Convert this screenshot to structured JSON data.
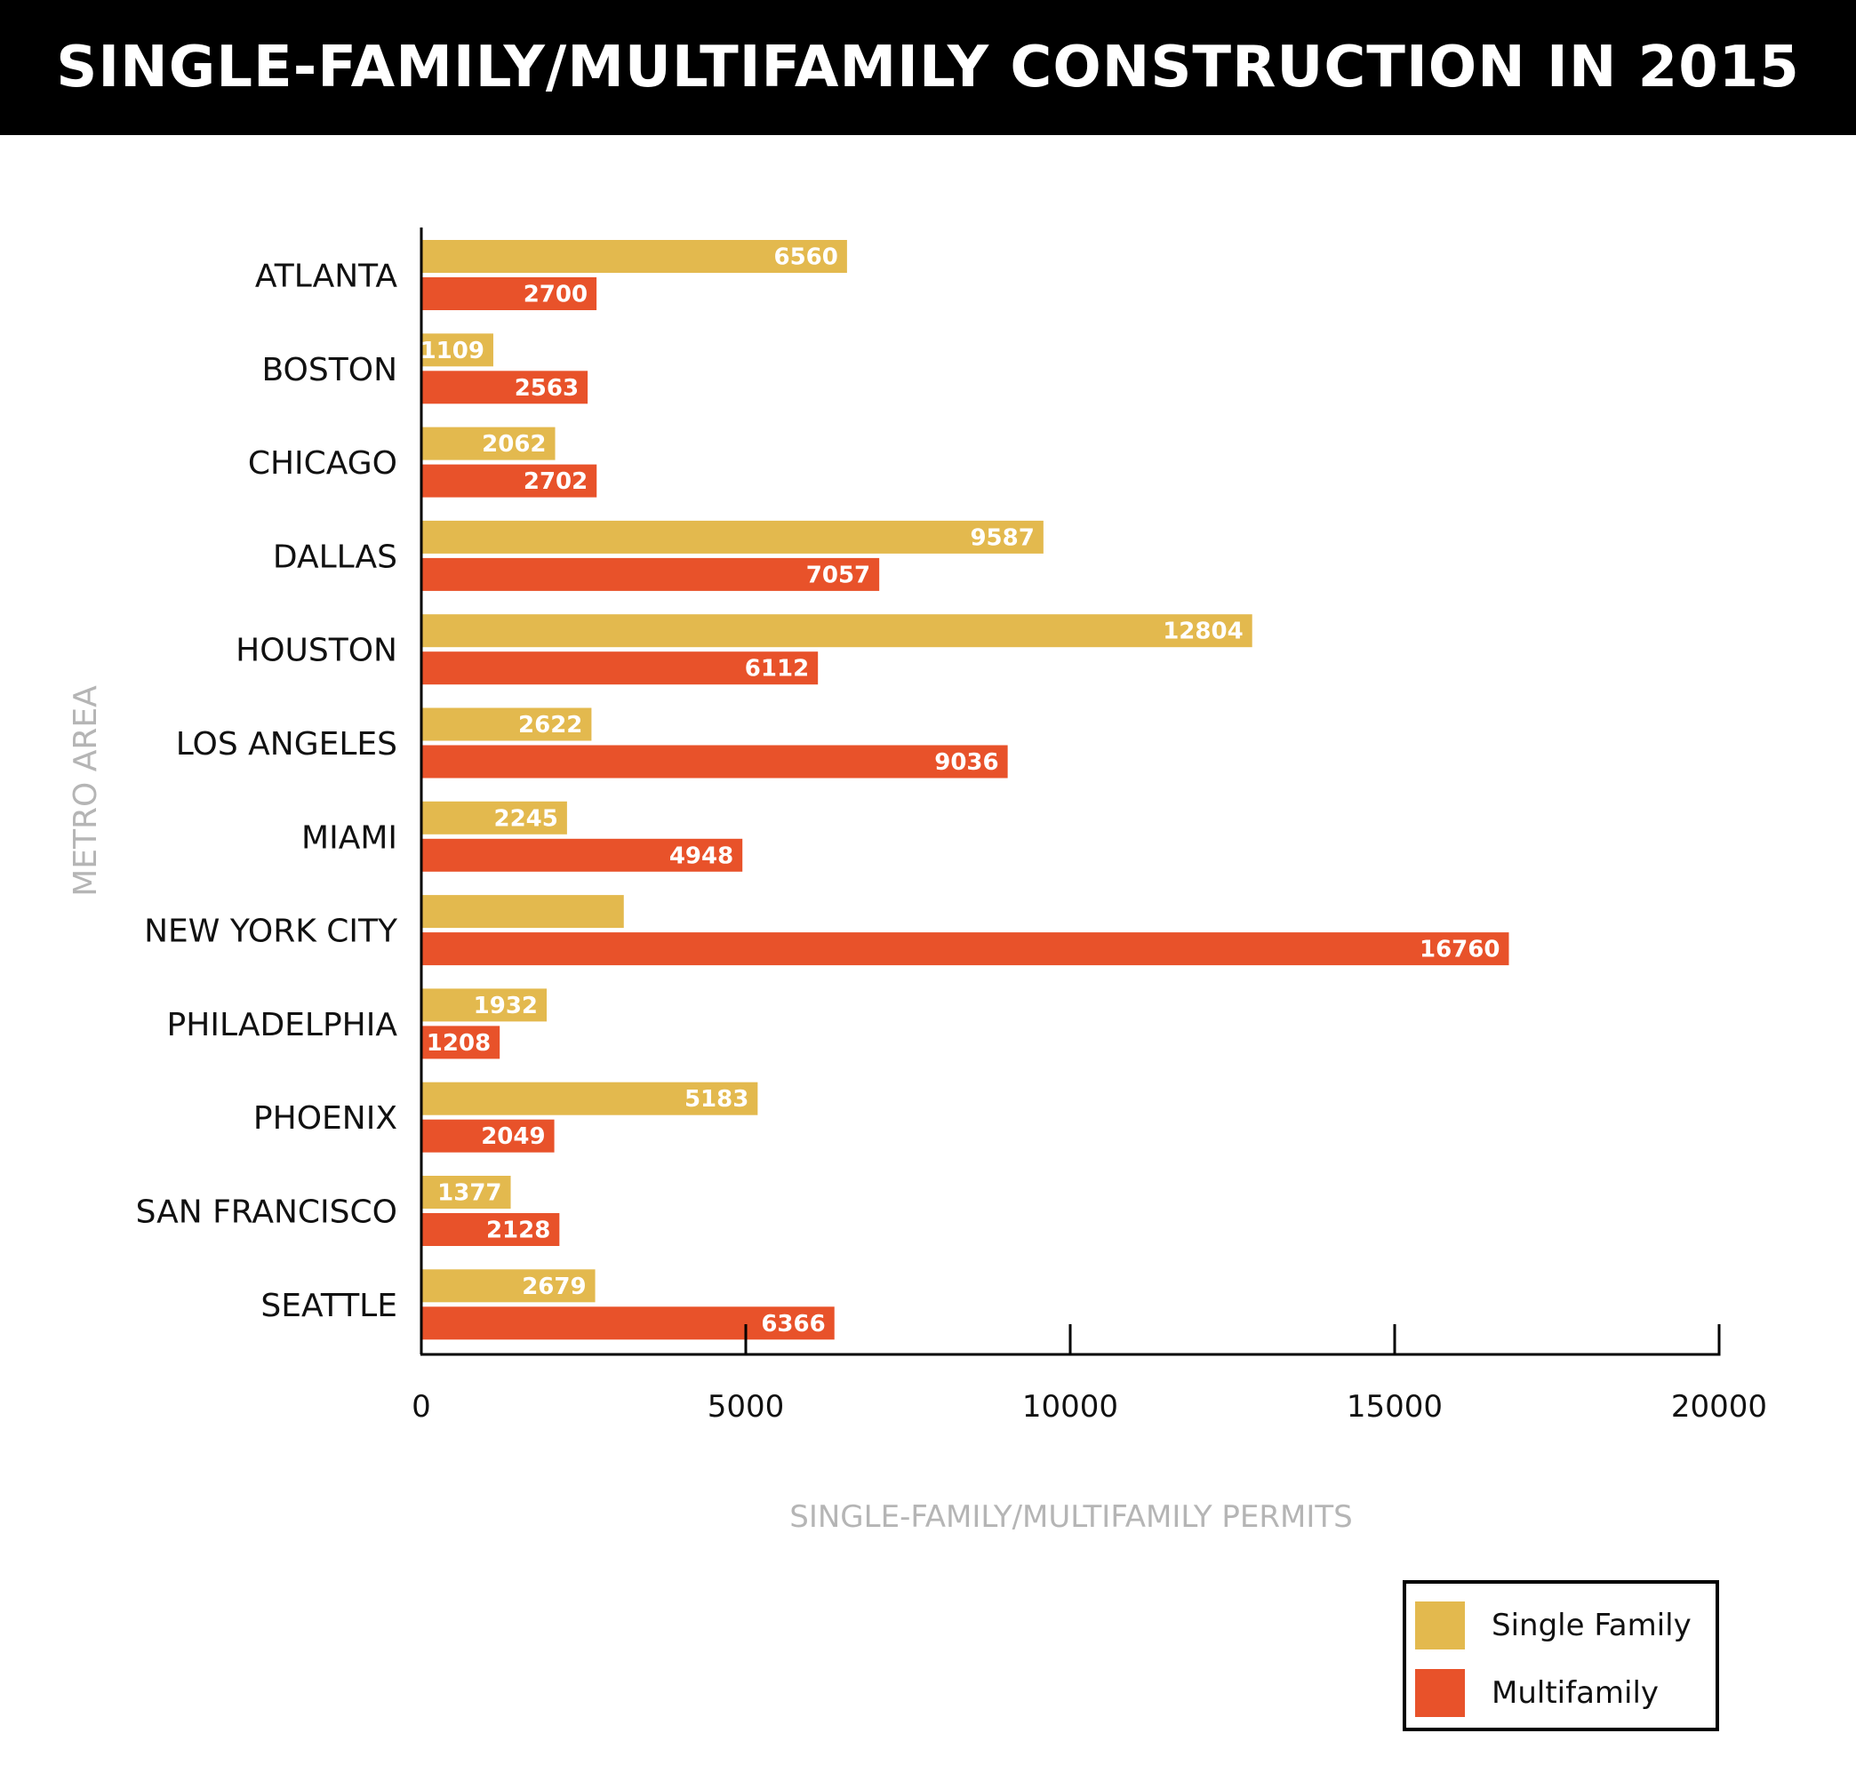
{
  "title": "SINGLE-FAMILY/MULTIFAMILY CONSTRUCTION IN 2015",
  "colors": {
    "single_family": "#E3B94E",
    "multifamily": "#E8522A",
    "axis": "#000000",
    "axis_title": "#B5B5B5",
    "bar_label": "#FFFFFF"
  },
  "chart_data": {
    "type": "bar",
    "orientation": "horizontal",
    "categories": [
      "ATLANTA",
      "BOSTON",
      "CHICAGO",
      "DALLAS",
      "HOUSTON",
      "LOS ANGELES",
      "MIAMI",
      "NEW YORK CITY",
      "PHILADELPHIA",
      "PHOENIX",
      "SAN FRANCISCO",
      "SEATTLE"
    ],
    "series": [
      {
        "name": "Single Family",
        "values": [
          6560,
          1109,
          2062,
          9587,
          12804,
          2622,
          2245,
          3120,
          1932,
          5183,
          1377,
          2679
        ],
        "labels": [
          "6560",
          "1109",
          "2062",
          "9587",
          "12804",
          "2622",
          "2245",
          "",
          "1932",
          "5183",
          "1377",
          "2679"
        ]
      },
      {
        "name": "Multifamily",
        "values": [
          2700,
          2563,
          2702,
          7057,
          6112,
          9036,
          4948,
          16760,
          1208,
          2049,
          2128,
          6366
        ],
        "labels": [
          "2700",
          "2563",
          "2702",
          "7057",
          "6112",
          "9036",
          "4948",
          "16760",
          "1208",
          "2049",
          "2128",
          "6366"
        ]
      }
    ],
    "xlabel": "SINGLE-FAMILY/MULTIFAMILY PERMITS",
    "ylabel": "METRO AREA",
    "xlim": [
      0,
      20000
    ],
    "xticks": [
      0,
      5000,
      10000,
      15000,
      20000
    ],
    "xtick_labels": [
      "0",
      "5000",
      "10000",
      "15000",
      "20000"
    ],
    "grid": false,
    "legend_position": "bottom-right"
  },
  "legend": {
    "single_family_label": "Single Family",
    "multifamily_label": "Multifamily"
  }
}
